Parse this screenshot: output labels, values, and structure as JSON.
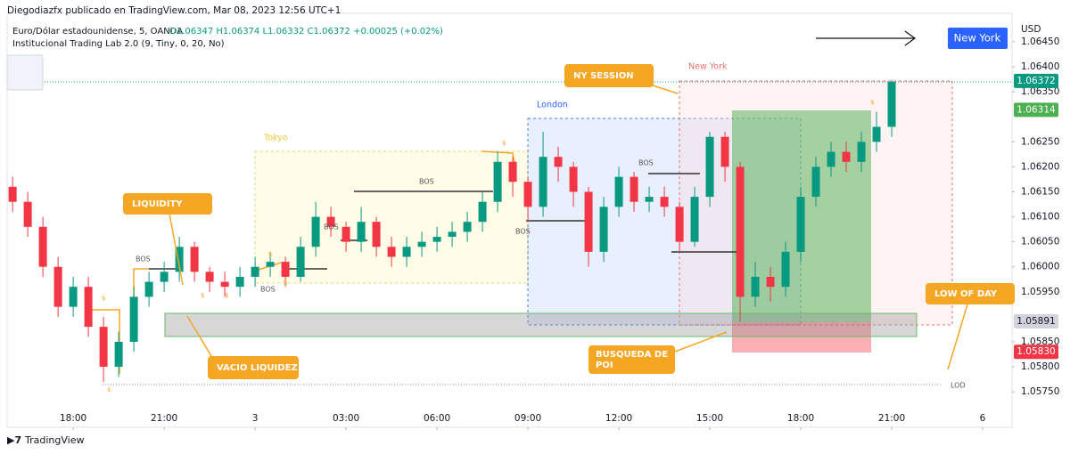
{
  "header": {
    "publisher": "Diegodiazfx publicado en TradingView.com, Mar 08, 2023 12:56 UTC+1",
    "symbol": "Euro/Dólar estadounidense, 5, OANDA",
    "quote": "O1.06347 H1.06374 L1.06332 C1.06372 +0.00025 (+0.02%)",
    "indicator": "Institucional Trading Lab 2.0 (9, Tiny, 0, 20, No)",
    "button": "New York",
    "currency": "USD",
    "footer": "TradingView"
  },
  "chart_data": {
    "type": "candlestick",
    "x": [
      -2,
      -1.5,
      -1,
      -0.5,
      0,
      0.5,
      1,
      1.5,
      2,
      2.5,
      3,
      3.5,
      4,
      4.5,
      5,
      5.5,
      6,
      6.5,
      7,
      7.5,
      8,
      8.5,
      9,
      9.5,
      10,
      10.5,
      11,
      11.5,
      12,
      12.5,
      13,
      13.5,
      14,
      14.5,
      15,
      15.5,
      16,
      16.5,
      17,
      17.5,
      18,
      18.5,
      19,
      19.5,
      20,
      20.5,
      21,
      21.5,
      22,
      22.5,
      23,
      23.5,
      24,
      24.5,
      25,
      25.5,
      26,
      26.5,
      27
    ],
    "open": [
      1.0616,
      1.0613,
      1.0608,
      1.06,
      1.0592,
      1.0596,
      1.0588,
      1.058,
      1.0585,
      1.0594,
      1.0597,
      1.0599,
      1.0604,
      1.0599,
      1.0597,
      1.0596,
      1.0598,
      1.06,
      1.0601,
      1.0598,
      1.0604,
      1.061,
      1.0608,
      1.0605,
      1.0609,
      1.0604,
      1.0602,
      1.0604,
      1.0605,
      1.0606,
      1.0607,
      1.0609,
      1.0613,
      1.0621,
      1.0617,
      1.0612,
      1.0622,
      1.062,
      1.0615,
      1.0603,
      1.0612,
      1.0618,
      1.0613,
      1.0614,
      1.0612,
      1.0605,
      1.0614,
      1.0626,
      1.062,
      1.0594,
      1.0598,
      1.0596,
      1.0603,
      1.0614,
      1.062,
      1.0623,
      1.0621,
      1.0625,
      1.0628
    ],
    "high": [
      1.0618,
      1.0615,
      1.061,
      1.0602,
      1.0598,
      1.0598,
      1.059,
      1.0587,
      1.0596,
      1.0599,
      1.0601,
      1.0606,
      1.0605,
      1.06,
      1.0599,
      1.06,
      1.0602,
      1.0603,
      1.0602,
      1.0606,
      1.0613,
      1.0612,
      1.0609,
      1.0612,
      1.061,
      1.0606,
      1.0606,
      1.0607,
      1.0608,
      1.0609,
      1.0611,
      1.0615,
      1.0623,
      1.0622,
      1.0618,
      1.0627,
      1.0624,
      1.0621,
      1.0616,
      1.0614,
      1.062,
      1.0619,
      1.0616,
      1.0616,
      1.0613,
      1.0616,
      1.0627,
      1.0627,
      1.0621,
      1.0601,
      1.06,
      1.0605,
      1.0616,
      1.0622,
      1.0625,
      1.0625,
      1.0627,
      1.0631,
      1.06374
    ],
    "low": [
      1.0611,
      1.0606,
      1.0598,
      1.059,
      1.059,
      1.0586,
      1.0577,
      1.0578,
      1.0583,
      1.0592,
      1.0595,
      1.0597,
      1.0597,
      1.0595,
      1.0594,
      1.0594,
      1.0596,
      1.0598,
      1.0596,
      1.0597,
      1.0602,
      1.0606,
      1.0603,
      1.0603,
      1.0602,
      1.06,
      1.06,
      1.0602,
      1.0603,
      1.0604,
      1.0605,
      1.0607,
      1.0611,
      1.0614,
      1.0609,
      1.061,
      1.0617,
      1.0612,
      1.06,
      1.0601,
      1.061,
      1.0611,
      1.0611,
      1.061,
      1.0603,
      1.0604,
      1.0612,
      1.0617,
      1.0589,
      1.0592,
      1.0593,
      1.0594,
      1.0601,
      1.0612,
      1.0618,
      1.0619,
      1.0619,
      1.0623,
      1.0626
    ],
    "close": [
      1.0613,
      1.0608,
      1.06,
      1.0592,
      1.0596,
      1.0588,
      1.058,
      1.0585,
      1.0594,
      1.0597,
      1.0599,
      1.0604,
      1.0599,
      1.0597,
      1.0596,
      1.0598,
      1.06,
      1.0601,
      1.0598,
      1.0604,
      1.061,
      1.0608,
      1.0605,
      1.0609,
      1.0604,
      1.0602,
      1.0604,
      1.0605,
      1.0606,
      1.0607,
      1.0609,
      1.0613,
      1.0621,
      1.0617,
      1.0612,
      1.0622,
      1.062,
      1.0615,
      1.0603,
      1.0612,
      1.0618,
      1.0613,
      1.0614,
      1.0612,
      1.0605,
      1.0614,
      1.0626,
      1.062,
      1.0594,
      1.0598,
      1.0596,
      1.0603,
      1.0614,
      1.062,
      1.0623,
      1.0621,
      1.0625,
      1.0628,
      1.0637
    ],
    "up_color": "#089981",
    "down_color": "#f23645",
    "xlim": [
      -2.18,
      30.97
    ],
    "ylim": [
      1.05679,
      1.06507
    ],
    "xticks": [
      {
        "value": 0,
        "label": "18:00"
      },
      {
        "value": 3,
        "label": "21:00"
      },
      {
        "value": 6,
        "label": "3"
      },
      {
        "value": 9,
        "label": "03:00"
      },
      {
        "value": 12,
        "label": "06:00"
      },
      {
        "value": 15,
        "label": "09:00"
      },
      {
        "value": 18,
        "label": "12:00"
      },
      {
        "value": 21,
        "label": "15:00"
      },
      {
        "value": 24,
        "label": "18:00"
      },
      {
        "value": 27,
        "label": "21:00"
      },
      {
        "value": 30,
        "label": "6"
      }
    ],
    "yticks": [
      {
        "value": 1.0645,
        "label": "1.06450"
      },
      {
        "value": 1.064,
        "label": "1.06400"
      },
      {
        "value": 1.0635,
        "label": "1.06350"
      },
      {
        "value": 1.0625,
        "label": "1.06250"
      },
      {
        "value": 1.062,
        "label": "1.06200"
      },
      {
        "value": 1.0615,
        "label": "1.06150"
      },
      {
        "value": 1.061,
        "label": "1.06100"
      },
      {
        "value": 1.0605,
        "label": "1.06050"
      },
      {
        "value": 1.06,
        "label": "1.06000"
      },
      {
        "value": 1.0595,
        "label": "1.05950"
      },
      {
        "value": 1.0585,
        "label": "1.05850"
      },
      {
        "value": 1.058,
        "label": "1.05800"
      },
      {
        "value": 1.0575,
        "label": "1.05750"
      }
    ],
    "price_tags": [
      {
        "value": 1.06372,
        "label": "1.06372",
        "color": "#089981"
      },
      {
        "value": 1.06314,
        "label": "1.06314",
        "color": "#4caf50"
      },
      {
        "value": 1.05891,
        "label": "1.05891",
        "color": "#d1d4dc"
      },
      {
        "value": 1.0583,
        "label": "1.05830",
        "color": "#f23645"
      }
    ],
    "sessions": [
      "Tokyo",
      "London",
      "New York"
    ],
    "callouts": [
      "LIQUIDITY",
      "VACIO LIQUIDEZ",
      "NY SESSION",
      "BUSQUEDA DE POI",
      "LOW OF DAY"
    ],
    "bos": [
      "BOS",
      "BOS",
      "BOS",
      "BOS",
      "BOS",
      "BOS"
    ],
    "lod": "LOD",
    "signals": [
      "$",
      "$",
      "$",
      "$",
      "$",
      "$",
      "$",
      "$"
    ]
  }
}
